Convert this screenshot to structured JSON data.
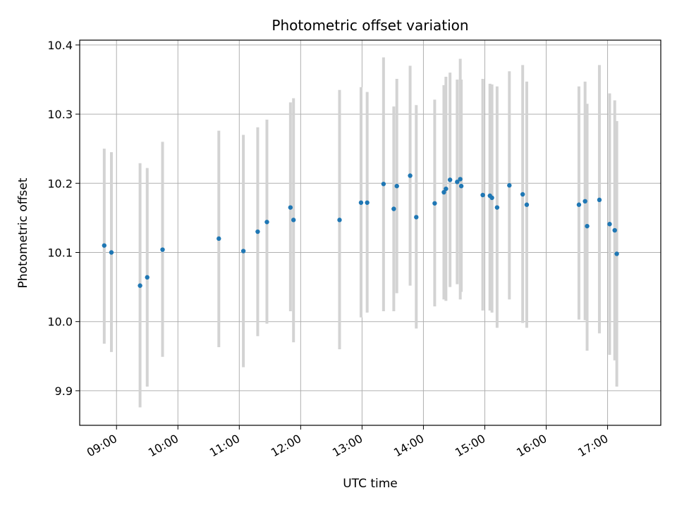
{
  "chart_data": {
    "type": "scatter",
    "title": "Photometric offset variation",
    "xlabel": "UTC time",
    "ylabel": "Photometric offset",
    "x_axis_type": "time",
    "xlim": [
      "08:24",
      "17:52"
    ],
    "ylim": [
      9.85,
      10.407
    ],
    "x_ticks": [
      "09:00",
      "10:00",
      "11:00",
      "12:00",
      "13:00",
      "14:00",
      "15:00",
      "16:00",
      "17:00"
    ],
    "y_ticks": [
      9.9,
      10.0,
      10.1,
      10.2,
      10.3,
      10.4
    ],
    "y_tick_labels": [
      "9.9",
      "10.0",
      "10.1",
      "10.2",
      "10.3",
      "10.4"
    ],
    "grid": true,
    "marker_color": "#1f77b4",
    "errorbar_color": "#d3d3d3",
    "points": [
      {
        "x": "08:48",
        "y": 10.11,
        "lo": 9.968,
        "hi": 10.25
      },
      {
        "x": "08:55",
        "y": 10.1,
        "lo": 9.956,
        "hi": 10.245
      },
      {
        "x": "09:23",
        "y": 10.052,
        "lo": 9.876,
        "hi": 10.229
      },
      {
        "x": "09:30",
        "y": 10.064,
        "lo": 9.906,
        "hi": 10.222
      },
      {
        "x": "09:45",
        "y": 10.104,
        "lo": 9.949,
        "hi": 10.26
      },
      {
        "x": "10:40",
        "y": 10.12,
        "lo": 9.963,
        "hi": 10.276
      },
      {
        "x": "11:04",
        "y": 10.102,
        "lo": 9.934,
        "hi": 10.27
      },
      {
        "x": "11:18",
        "y": 10.13,
        "lo": 9.979,
        "hi": 10.281
      },
      {
        "x": "11:27",
        "y": 10.144,
        "lo": 9.997,
        "hi": 10.292
      },
      {
        "x": "11:50",
        "y": 10.165,
        "lo": 10.015,
        "hi": 10.317
      },
      {
        "x": "11:53",
        "y": 10.147,
        "lo": 9.97,
        "hi": 10.323
      },
      {
        "x": "12:38",
        "y": 10.147,
        "lo": 9.96,
        "hi": 10.335
      },
      {
        "x": "12:59",
        "y": 10.172,
        "lo": 10.006,
        "hi": 10.339
      },
      {
        "x": "13:05",
        "y": 10.172,
        "lo": 10.013,
        "hi": 10.332
      },
      {
        "x": "13:21",
        "y": 10.199,
        "lo": 10.015,
        "hi": 10.382
      },
      {
        "x": "13:31",
        "y": 10.163,
        "lo": 10.015,
        "hi": 10.311
      },
      {
        "x": "13:34",
        "y": 10.196,
        "lo": 10.041,
        "hi": 10.351
      },
      {
        "x": "13:47",
        "y": 10.211,
        "lo": 10.052,
        "hi": 10.37
      },
      {
        "x": "13:53",
        "y": 10.151,
        "lo": 9.99,
        "hi": 10.313
      },
      {
        "x": "14:11",
        "y": 10.171,
        "lo": 10.022,
        "hi": 10.321
      },
      {
        "x": "14:20",
        "y": 10.187,
        "lo": 10.032,
        "hi": 10.342
      },
      {
        "x": "14:22",
        "y": 10.192,
        "lo": 10.03,
        "hi": 10.354
      },
      {
        "x": "14:26",
        "y": 10.205,
        "lo": 10.05,
        "hi": 10.36
      },
      {
        "x": "14:33",
        "y": 10.202,
        "lo": 10.054,
        "hi": 10.35
      },
      {
        "x": "14:36",
        "y": 10.206,
        "lo": 10.032,
        "hi": 10.38
      },
      {
        "x": "14:37",
        "y": 10.196,
        "lo": 10.043,
        "hi": 10.35
      },
      {
        "x": "14:58",
        "y": 10.183,
        "lo": 10.016,
        "hi": 10.351
      },
      {
        "x": "15:05",
        "y": 10.182,
        "lo": 10.016,
        "hi": 10.344
      },
      {
        "x": "15:07",
        "y": 10.179,
        "lo": 10.013,
        "hi": 10.343
      },
      {
        "x": "15:12",
        "y": 10.165,
        "lo": 9.991,
        "hi": 10.34
      },
      {
        "x": "15:24",
        "y": 10.197,
        "lo": 10.032,
        "hi": 10.362
      },
      {
        "x": "15:37",
        "y": 10.184,
        "lo": 9.998,
        "hi": 10.371
      },
      {
        "x": "15:41",
        "y": 10.169,
        "lo": 9.991,
        "hi": 10.347
      },
      {
        "x": "16:32",
        "y": 10.169,
        "lo": 10.003,
        "hi": 10.34
      },
      {
        "x": "16:38",
        "y": 10.174,
        "lo": 10.002,
        "hi": 10.347
      },
      {
        "x": "16:40",
        "y": 10.138,
        "lo": 9.958,
        "hi": 10.315
      },
      {
        "x": "16:52",
        "y": 10.176,
        "lo": 9.983,
        "hi": 10.371
      },
      {
        "x": "17:02",
        "y": 10.141,
        "lo": 9.952,
        "hi": 10.33
      },
      {
        "x": "17:07",
        "y": 10.132,
        "lo": 9.944,
        "hi": 10.32
      },
      {
        "x": "17:09",
        "y": 10.098,
        "lo": 9.906,
        "hi": 10.29
      }
    ]
  }
}
